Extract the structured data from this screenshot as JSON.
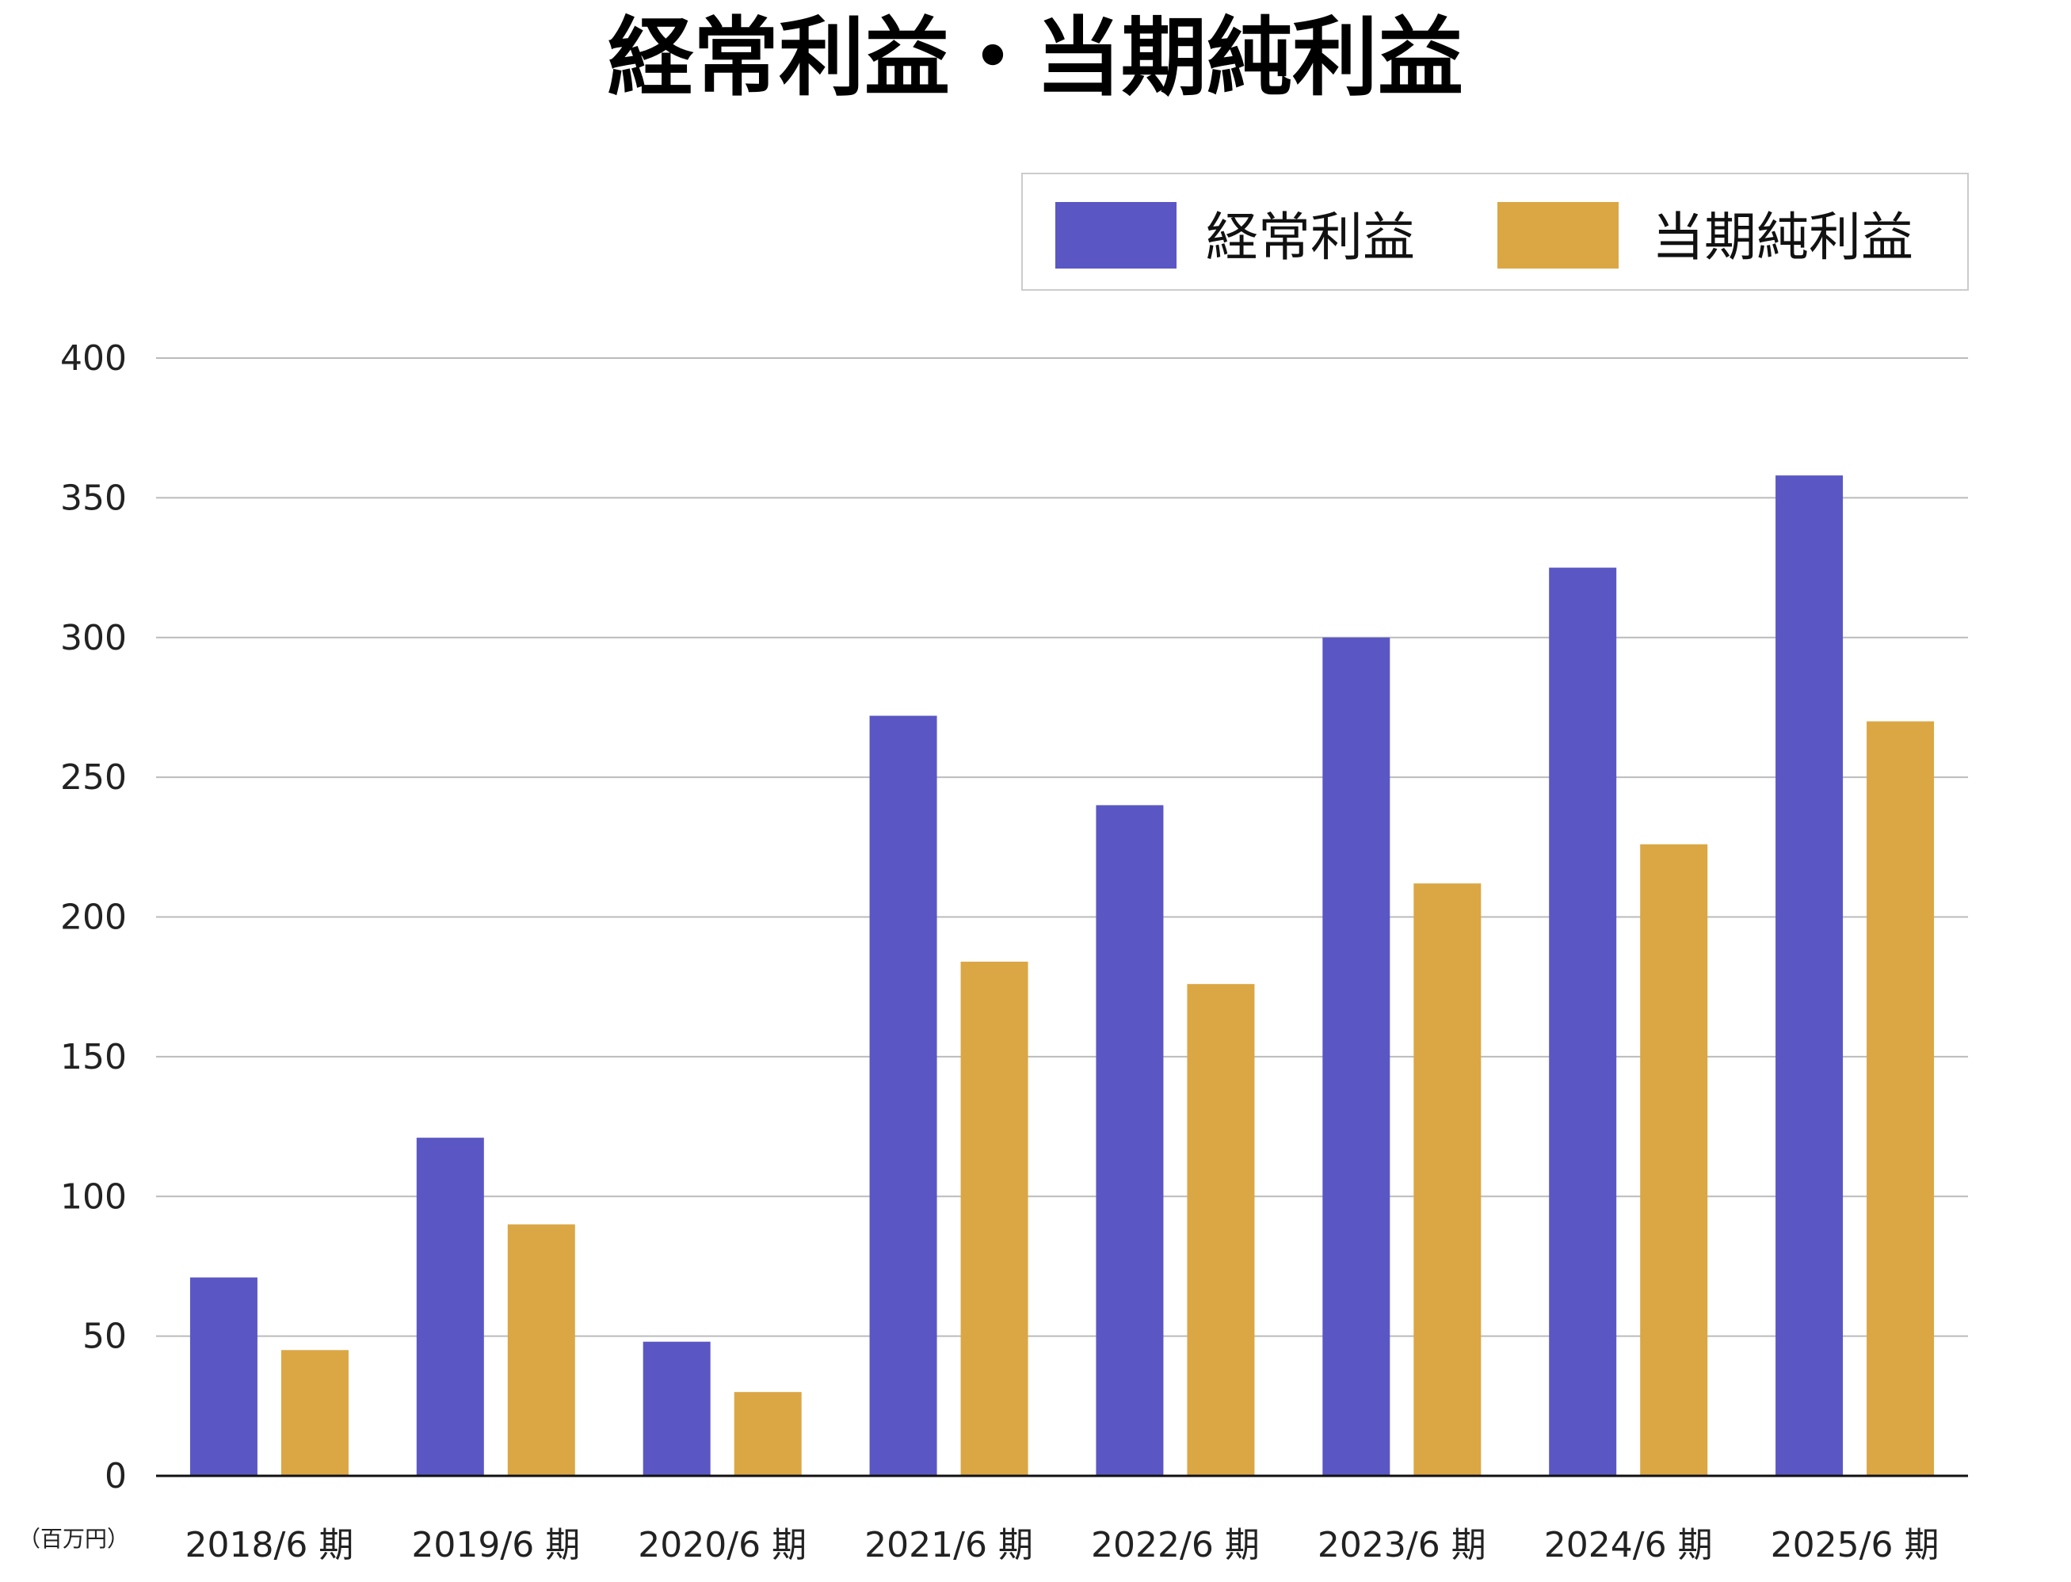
{
  "chart_data": {
    "type": "bar",
    "title": "経常利益・当期純利益",
    "xlabel": "",
    "ylabel": "",
    "unit_label": "（百万円）",
    "categories": [
      "2018/6 期",
      "2019/6 期",
      "2020/6 期",
      "2021/6 期",
      "2022/6 期",
      "2023/6 期",
      "2024/6 期",
      "2025/6 期"
    ],
    "series": [
      {
        "name": "経常利益",
        "color": "#5A57C4",
        "values": [
          71,
          121,
          48,
          272,
          240,
          300,
          325,
          358
        ]
      },
      {
        "name": "当期純利益",
        "color": "#DBA744",
        "values": [
          45,
          90,
          30,
          184,
          176,
          212,
          226,
          270
        ]
      }
    ],
    "ylim": [
      0,
      400
    ],
    "yticks": [
      "0",
      "50",
      "100",
      "150",
      "200",
      "250",
      "300",
      "350",
      "400"
    ],
    "grid": true,
    "legend_position": "top-right"
  }
}
